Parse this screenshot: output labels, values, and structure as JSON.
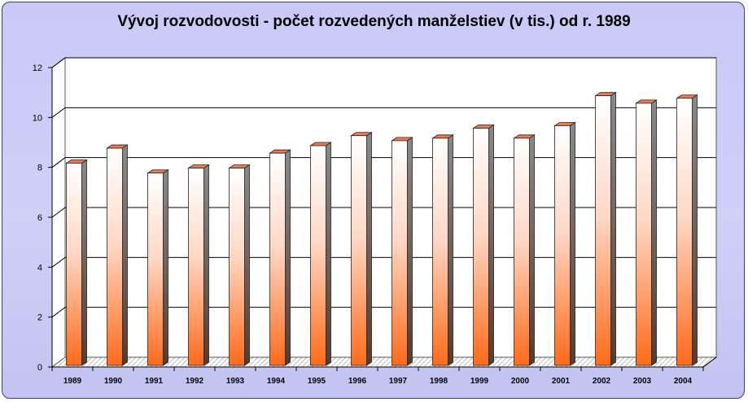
{
  "chart_data": {
    "type": "bar",
    "title": "Vývoj rozvodovosti - počet rozvedených manželstiev (v tis.) od r. 1989",
    "xlabel": "",
    "ylabel": "",
    "categories": [
      "1989",
      "1990",
      "1991",
      "1992",
      "1993",
      "1994",
      "1995",
      "1996",
      "1997",
      "1998",
      "1999",
      "2000",
      "2001",
      "2002",
      "2003",
      "2004"
    ],
    "values": [
      8.3,
      8.9,
      7.9,
      8.1,
      8.1,
      8.7,
      9.0,
      9.4,
      9.2,
      9.3,
      9.7,
      9.3,
      9.8,
      11.0,
      10.7,
      10.9
    ],
    "ylim": [
      0,
      12
    ],
    "yticks": [
      "0",
      "2",
      "4",
      "6",
      "8",
      "10",
      "12"
    ],
    "grid": true,
    "style": "3d",
    "colors": {
      "bar_top": "#ffffff",
      "bar_bottom": "#ff6a1a",
      "bar_side": "#7a7a7a",
      "bar_cap": "#f07a50",
      "background": "#cdcdf6",
      "plot_wall": "#ffffff"
    }
  }
}
